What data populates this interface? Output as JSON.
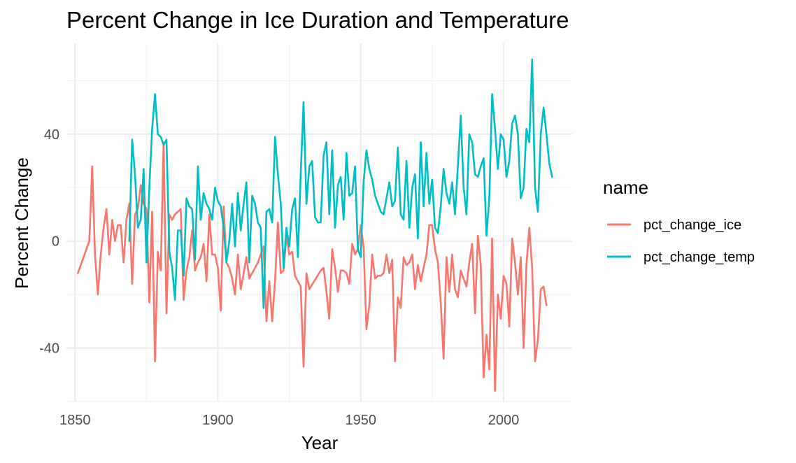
{
  "chart_data": {
    "type": "line",
    "title": "Percent Change in Ice Duration and Temperature",
    "xlabel": "Year",
    "ylabel": "Percent Change",
    "xlim": [
      1847,
      2024
    ],
    "ylim": [
      -60,
      74
    ],
    "x_ticks": [
      1850,
      1900,
      1950,
      2000
    ],
    "x_tick_labels": [
      "1850",
      "1900",
      "1950",
      "2000"
    ],
    "y_ticks": [
      -40,
      0,
      40
    ],
    "y_tick_labels": [
      "-40",
      "0",
      "40"
    ],
    "legend": {
      "title": "name",
      "position": "right",
      "entries": [
        "pct_change_ice",
        "pct_change_temp"
      ]
    },
    "series": [
      {
        "name": "pct_change_ice",
        "color": "#F8766D",
        "points": [
          [
            1851,
            -12
          ],
          [
            1855,
            0
          ],
          [
            1856,
            28
          ],
          [
            1857,
            -5
          ],
          [
            1858,
            -20
          ],
          [
            1859,
            -5
          ],
          [
            1860,
            5
          ],
          [
            1861,
            12
          ],
          [
            1862,
            -5
          ],
          [
            1863,
            8
          ],
          [
            1864,
            0
          ],
          [
            1865,
            6
          ],
          [
            1866,
            6
          ],
          [
            1867,
            -8
          ],
          [
            1868,
            8
          ],
          [
            1869,
            14
          ],
          [
            1870,
            -16
          ],
          [
            1871,
            10
          ],
          [
            1872,
            12
          ],
          [
            1873,
            21
          ],
          [
            1874,
            14
          ],
          [
            1875,
            12
          ],
          [
            1876,
            -23
          ],
          [
            1877,
            11
          ],
          [
            1878,
            -45
          ],
          [
            1879,
            -4
          ],
          [
            1880,
            -11
          ],
          [
            1881,
            37
          ],
          [
            1882,
            -27
          ],
          [
            1883,
            10
          ],
          [
            1884,
            8
          ],
          [
            1885,
            10
          ],
          [
            1886,
            11
          ],
          [
            1887,
            12
          ],
          [
            1888,
            -22
          ],
          [
            1889,
            -11
          ],
          [
            1890,
            -6
          ],
          [
            1891,
            4
          ],
          [
            1892,
            -11
          ],
          [
            1893,
            -8
          ],
          [
            1894,
            -6
          ],
          [
            1895,
            -1
          ],
          [
            1896,
            -15
          ],
          [
            1897,
            10
          ],
          [
            1898,
            -5
          ],
          [
            1899,
            -5
          ],
          [
            1900,
            -10
          ],
          [
            1901,
            -26
          ],
          [
            1902,
            13
          ],
          [
            1903,
            -8
          ],
          [
            1904,
            -10
          ],
          [
            1905,
            -14
          ],
          [
            1906,
            -20
          ],
          [
            1907,
            -5
          ],
          [
            1908,
            -18
          ],
          [
            1909,
            -12
          ],
          [
            1910,
            -6
          ],
          [
            1911,
            -14
          ],
          [
            1914,
            -8
          ],
          [
            1915,
            -5
          ],
          [
            1916,
            -2
          ],
          [
            1917,
            -30
          ],
          [
            1918,
            -15
          ],
          [
            1919,
            -30
          ],
          [
            1920,
            -15
          ],
          [
            1921,
            7
          ],
          [
            1922,
            -12
          ],
          [
            1923,
            -11
          ],
          [
            1924,
            2
          ],
          [
            1925,
            -5
          ],
          [
            1926,
            -4
          ],
          [
            1927,
            -13
          ],
          [
            1928,
            -15
          ],
          [
            1929,
            -17
          ],
          [
            1930,
            -47
          ],
          [
            1931,
            -12
          ],
          [
            1932,
            -18
          ],
          [
            1936,
            -11
          ],
          [
            1937,
            -10
          ],
          [
            1938,
            -19
          ],
          [
            1939,
            -29
          ],
          [
            1940,
            -3
          ],
          [
            1941,
            -10
          ],
          [
            1942,
            -19
          ],
          [
            1943,
            -11
          ],
          [
            1944,
            -11
          ],
          [
            1945,
            -12
          ],
          [
            1946,
            -16
          ],
          [
            1947,
            -1
          ],
          [
            1948,
            -5
          ],
          [
            1949,
            -3
          ],
          [
            1950,
            6
          ],
          [
            1951,
            -2
          ],
          [
            1952,
            -33
          ],
          [
            1953,
            -24
          ],
          [
            1954,
            -5
          ],
          [
            1955,
            -14
          ],
          [
            1956,
            -13
          ],
          [
            1957,
            -13
          ],
          [
            1958,
            -12
          ],
          [
            1959,
            -5
          ],
          [
            1960,
            -12
          ],
          [
            1961,
            -7
          ],
          [
            1962,
            -45
          ],
          [
            1963,
            -21
          ],
          [
            1964,
            -25
          ],
          [
            1965,
            -6
          ],
          [
            1966,
            -9
          ],
          [
            1967,
            -8
          ],
          [
            1968,
            -5
          ],
          [
            1969,
            -18
          ],
          [
            1970,
            -9
          ],
          [
            1971,
            -15
          ],
          [
            1972,
            -10
          ],
          [
            1973,
            -5
          ],
          [
            1974,
            6
          ],
          [
            1975,
            6
          ],
          [
            1976,
            -3
          ],
          [
            1977,
            -8
          ],
          [
            1978,
            -23
          ],
          [
            1979,
            -44
          ],
          [
            1980,
            -6
          ],
          [
            1981,
            -19
          ],
          [
            1982,
            -5
          ],
          [
            1983,
            -18
          ],
          [
            1984,
            -21
          ],
          [
            1985,
            -11
          ],
          [
            1986,
            -14
          ],
          [
            1987,
            -17
          ],
          [
            1988,
            -8
          ],
          [
            1989,
            -1
          ],
          [
            1990,
            -27
          ],
          [
            1991,
            2
          ],
          [
            1992,
            -9
          ],
          [
            1993,
            -51
          ],
          [
            1994,
            -35
          ],
          [
            1995,
            -48
          ],
          [
            1996,
            1
          ],
          [
            1997,
            -56
          ],
          [
            1998,
            -20
          ],
          [
            1999,
            -29
          ],
          [
            2000,
            -13
          ],
          [
            2001,
            -16
          ],
          [
            2002,
            -32
          ],
          [
            2003,
            1
          ],
          [
            2004,
            -8
          ],
          [
            2005,
            -20
          ],
          [
            2006,
            -6
          ],
          [
            2007,
            -40
          ],
          [
            2008,
            -9
          ],
          [
            2009,
            5
          ],
          [
            2010,
            -10
          ],
          [
            2011,
            -45
          ],
          [
            2012,
            -37
          ],
          [
            2013,
            -18
          ],
          [
            2014,
            -17
          ],
          [
            2015,
            -24
          ]
        ]
      },
      {
        "name": "pct_change_temp",
        "color": "#00BFC4",
        "points": [
          [
            1869,
            0
          ],
          [
            1870,
            38
          ],
          [
            1871,
            25
          ],
          [
            1872,
            5
          ],
          [
            1873,
            8
          ],
          [
            1874,
            27
          ],
          [
            1875,
            -8
          ],
          [
            1876,
            20
          ],
          [
            1877,
            42
          ],
          [
            1878,
            55
          ],
          [
            1879,
            40
          ],
          [
            1880,
            39
          ],
          [
            1881,
            36
          ],
          [
            1882,
            38
          ],
          [
            1883,
            -4
          ],
          [
            1884,
            -10
          ],
          [
            1885,
            -22
          ],
          [
            1886,
            4
          ],
          [
            1887,
            4
          ],
          [
            1888,
            -13
          ],
          [
            1889,
            16
          ],
          [
            1890,
            13
          ],
          [
            1891,
            12
          ],
          [
            1892,
            -7
          ],
          [
            1893,
            28
          ],
          [
            1894,
            8
          ],
          [
            1895,
            18
          ],
          [
            1896,
            14
          ],
          [
            1897,
            12
          ],
          [
            1898,
            8
          ],
          [
            1899,
            20
          ],
          [
            1900,
            15
          ],
          [
            1901,
            13
          ],
          [
            1902,
            5
          ],
          [
            1903,
            -8
          ],
          [
            1904,
            0
          ],
          [
            1905,
            14
          ],
          [
            1906,
            -2
          ],
          [
            1907,
            18
          ],
          [
            1908,
            4
          ],
          [
            1909,
            14
          ],
          [
            1910,
            22
          ],
          [
            1911,
            -8
          ],
          [
            1912,
            17
          ],
          [
            1913,
            14
          ],
          [
            1914,
            7
          ],
          [
            1915,
            5
          ],
          [
            1916,
            -25
          ],
          [
            1917,
            11
          ],
          [
            1918,
            12
          ],
          [
            1919,
            7
          ],
          [
            1920,
            39
          ],
          [
            1921,
            25
          ],
          [
            1922,
            14
          ],
          [
            1923,
            -10
          ],
          [
            1924,
            5
          ],
          [
            1925,
            -2
          ],
          [
            1926,
            12
          ],
          [
            1927,
            16
          ],
          [
            1928,
            -6
          ],
          [
            1929,
            25
          ],
          [
            1930,
            52
          ],
          [
            1931,
            14
          ],
          [
            1932,
            28
          ],
          [
            1933,
            30
          ],
          [
            1934,
            9
          ],
          [
            1935,
            7
          ],
          [
            1936,
            7
          ],
          [
            1937,
            32
          ],
          [
            1938,
            37
          ],
          [
            1939,
            10
          ],
          [
            1940,
            34
          ],
          [
            1941,
            5
          ],
          [
            1942,
            21
          ],
          [
            1943,
            24
          ],
          [
            1944,
            8
          ],
          [
            1945,
            33
          ],
          [
            1946,
            17
          ],
          [
            1947,
            18
          ],
          [
            1948,
            28
          ],
          [
            1949,
            -3
          ],
          [
            1950,
            -6
          ],
          [
            1951,
            22
          ],
          [
            1952,
            34
          ],
          [
            1953,
            27
          ],
          [
            1954,
            23
          ],
          [
            1955,
            17
          ],
          [
            1956,
            14
          ],
          [
            1957,
            11
          ],
          [
            1958,
            10
          ],
          [
            1959,
            16
          ],
          [
            1960,
            22
          ],
          [
            1961,
            13
          ],
          [
            1962,
            15
          ],
          [
            1963,
            35
          ],
          [
            1964,
            10
          ],
          [
            1965,
            8
          ],
          [
            1966,
            30
          ],
          [
            1967,
            5
          ],
          [
            1968,
            20
          ],
          [
            1969,
            25
          ],
          [
            1970,
            1
          ],
          [
            1971,
            37
          ],
          [
            1972,
            13
          ],
          [
            1973,
            33
          ],
          [
            1974,
            14
          ],
          [
            1975,
            23
          ],
          [
            1976,
            5
          ],
          [
            1977,
            3
          ],
          [
            1978,
            13
          ],
          [
            1979,
            27
          ],
          [
            1980,
            18
          ],
          [
            1981,
            14
          ],
          [
            1982,
            22
          ],
          [
            1983,
            10
          ],
          [
            1984,
            28
          ],
          [
            1985,
            47
          ],
          [
            1986,
            20
          ],
          [
            1987,
            10
          ],
          [
            1988,
            40
          ],
          [
            1989,
            37
          ],
          [
            1990,
            25
          ],
          [
            1991,
            24
          ],
          [
            1992,
            28
          ],
          [
            1993,
            31
          ],
          [
            1994,
            2
          ],
          [
            1995,
            16
          ],
          [
            1996,
            55
          ],
          [
            1997,
            42
          ],
          [
            1998,
            27
          ],
          [
            1999,
            40
          ],
          [
            2000,
            38
          ],
          [
            2001,
            24
          ],
          [
            2002,
            30
          ],
          [
            2003,
            44
          ],
          [
            2004,
            47
          ],
          [
            2005,
            40
          ],
          [
            2006,
            16
          ],
          [
            2007,
            20
          ],
          [
            2008,
            42
          ],
          [
            2009,
            37
          ],
          [
            2010,
            68
          ],
          [
            2011,
            20
          ],
          [
            2012,
            11
          ],
          [
            2013,
            40
          ],
          [
            2014,
            50
          ],
          [
            2015,
            40
          ],
          [
            2016,
            29
          ],
          [
            2017,
            24
          ]
        ]
      }
    ]
  }
}
